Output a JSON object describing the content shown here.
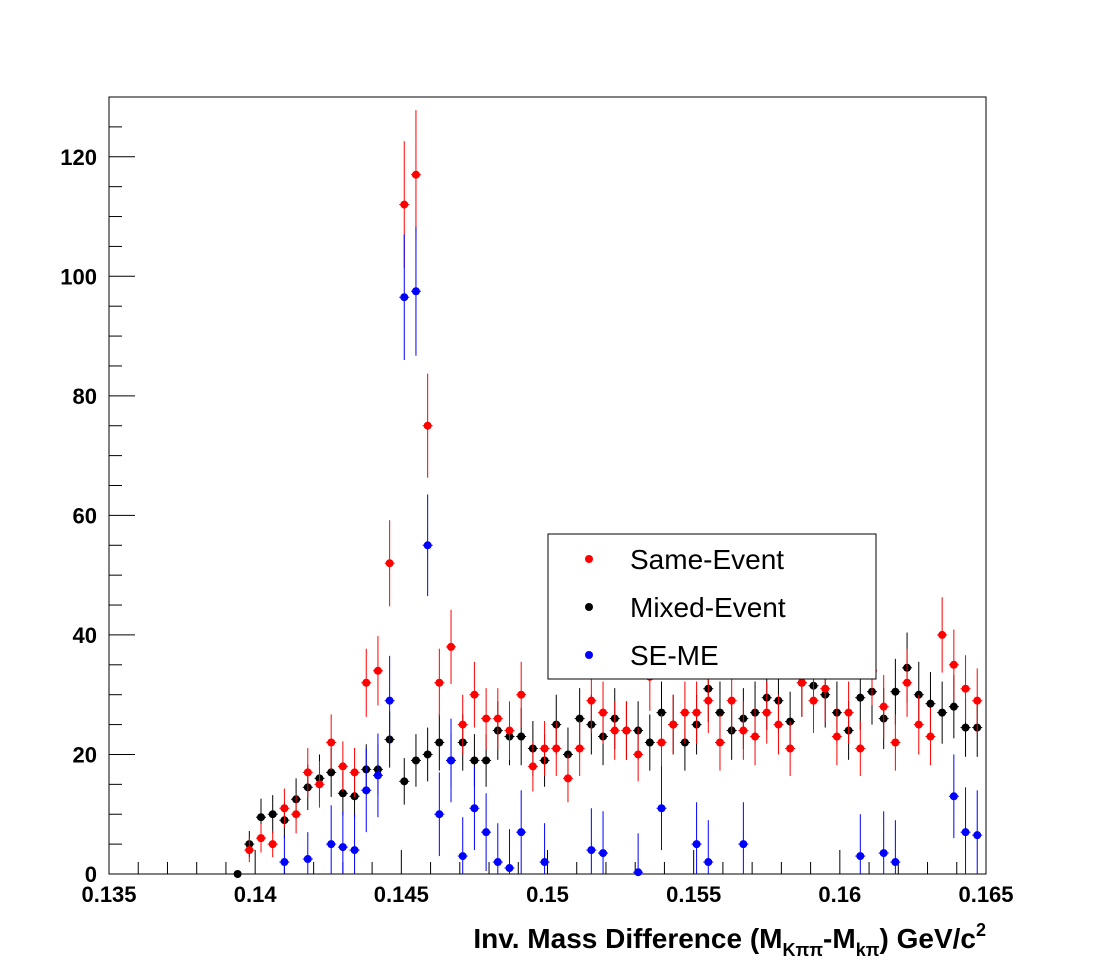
{
  "chart_data": {
    "type": "scatter",
    "title": "",
    "xlabel": {
      "main": "Inv. Mass Difference (M",
      "sub1": "Kππ",
      "mid": "-M",
      "sub2": "kπ",
      "close": ") GeV/c",
      "sup": "2"
    },
    "ylabel": "",
    "xlim": [
      0.135,
      0.165
    ],
    "ylim": [
      0,
      130
    ],
    "x_ticks": [
      0.135,
      0.14,
      0.145,
      0.15,
      0.155,
      0.16,
      0.165
    ],
    "x_tick_labels": [
      "0.135",
      "0.14",
      "0.145",
      "0.15",
      "0.155",
      "0.16",
      "0.165"
    ],
    "y_ticks": [
      0,
      20,
      40,
      60,
      80,
      100,
      120
    ],
    "y_tick_labels": [
      "0",
      "20",
      "40",
      "60",
      "80",
      "100",
      "120"
    ],
    "legend_position": "center-right",
    "series": [
      {
        "name": "Same-Event",
        "color": "#ff0000",
        "x": [
          0.1398,
          0.1402,
          0.1406,
          0.141,
          0.1414,
          0.1418,
          0.1422,
          0.1426,
          0.143,
          0.1434,
          0.1438,
          0.1442,
          0.1446,
          0.1451,
          0.1455,
          0.1459,
          0.1463,
          0.1467,
          0.1471,
          0.1475,
          0.1479,
          0.1483,
          0.1487,
          0.1491,
          0.1495,
          0.1499,
          0.1503,
          0.1507,
          0.1511,
          0.1515,
          0.1519,
          0.1523,
          0.1527,
          0.1531,
          0.1535,
          0.1539,
          0.1543,
          0.1547,
          0.1551,
          0.1555,
          0.1559,
          0.1563,
          0.1567,
          0.1571,
          0.1575,
          0.1579,
          0.1583,
          0.1587,
          0.1591,
          0.1595,
          0.1599,
          0.1603,
          0.1607,
          0.1611,
          0.1615,
          0.1619,
          0.1623,
          0.1627,
          0.1631,
          0.1635,
          0.1639,
          0.1643,
          0.1647
        ],
        "y": [
          4,
          6,
          5,
          11,
          10,
          17,
          15,
          22,
          18,
          17,
          32,
          34,
          52,
          112,
          117,
          75,
          32,
          38,
          25,
          30,
          26,
          26,
          24,
          30,
          18,
          21,
          21,
          16,
          21,
          29,
          27,
          24,
          24,
          20,
          33,
          22,
          25,
          27,
          27,
          29,
          22,
          29,
          24,
          23,
          27,
          25,
          21,
          32,
          29,
          31,
          23,
          27,
          21,
          34,
          28,
          22,
          32,
          25,
          23,
          40,
          35,
          31,
          29
        ],
        "err": [
          2,
          2.4,
          2.2,
          3.3,
          3.2,
          4.1,
          3.9,
          4.7,
          4.2,
          4.1,
          5.7,
          5.8,
          7.2,
          10.6,
          10.8,
          8.7,
          5.7,
          6.2,
          5,
          5.5,
          5.1,
          5.1,
          4.9,
          5.5,
          4.2,
          4.6,
          4.6,
          4,
          4.6,
          5.4,
          5.2,
          4.9,
          4.9,
          4.5,
          5.7,
          4.7,
          5,
          5.2,
          5.2,
          5.4,
          4.7,
          5.4,
          4.9,
          4.8,
          5.2,
          5,
          4.6,
          5.7,
          5.4,
          5.6,
          4.8,
          5.2,
          4.6,
          5.8,
          5.3,
          4.7,
          5.7,
          5,
          4.8,
          6.3,
          5.9,
          5.6,
          5.4
        ]
      },
      {
        "name": "Mixed-Event",
        "color": "#000000",
        "x": [
          0.1394,
          0.1398,
          0.1402,
          0.1406,
          0.141,
          0.1414,
          0.1418,
          0.1422,
          0.1426,
          0.143,
          0.1434,
          0.1438,
          0.1442,
          0.1446,
          0.1451,
          0.1455,
          0.1459,
          0.1463,
          0.1467,
          0.1471,
          0.1475,
          0.1479,
          0.1483,
          0.1487,
          0.1491,
          0.1495,
          0.1499,
          0.1503,
          0.1507,
          0.1511,
          0.1515,
          0.1519,
          0.1523,
          0.1527,
          0.1531,
          0.1535,
          0.1539,
          0.1543,
          0.1547,
          0.1551,
          0.1555,
          0.1559,
          0.1563,
          0.1567,
          0.1571,
          0.1575,
          0.1579,
          0.1583,
          0.1587,
          0.1591,
          0.1595,
          0.1599,
          0.1603,
          0.1607,
          0.1611,
          0.1615,
          0.1619,
          0.1623,
          0.1627,
          0.1631,
          0.1635,
          0.1639,
          0.1643,
          0.1647
        ],
        "y": [
          0,
          5,
          9.5,
          10,
          9,
          12.5,
          14.5,
          16,
          17,
          13.5,
          13,
          17.5,
          17.5,
          22.5,
          15.5,
          19,
          20,
          22,
          19,
          22,
          19,
          19,
          24,
          23,
          23,
          21,
          19,
          25,
          20,
          26,
          25,
          23,
          26,
          24,
          24,
          22,
          27,
          25,
          22,
          25,
          31,
          27,
          24,
          26,
          27,
          29.5,
          29,
          25.5,
          32,
          31.5,
          30,
          27,
          24,
          29.5,
          30.5,
          26,
          30.5,
          34.5,
          30,
          28.5,
          27,
          28,
          24.5,
          24.5
        ],
        "err": [
          0.5,
          2.2,
          3.1,
          3.2,
          3,
          3.5,
          3.8,
          4,
          4.1,
          3.7,
          3.6,
          4.2,
          4.2,
          4.7,
          3.9,
          4.4,
          4.5,
          4.7,
          4.4,
          4.7,
          4.4,
          4.4,
          4.9,
          4.8,
          4.8,
          4.6,
          4.4,
          5,
          4.5,
          5.1,
          5,
          4.8,
          5.1,
          4.9,
          4.9,
          4.7,
          5.2,
          5,
          4.7,
          5,
          5.6,
          5.2,
          4.9,
          5.1,
          5.2,
          5.4,
          5.4,
          5,
          5.7,
          5.6,
          5.5,
          5.2,
          4.9,
          5.4,
          5.5,
          5.1,
          5.5,
          5.9,
          5.5,
          5.3,
          5.2,
          5.3,
          4.9,
          4.9
        ]
      },
      {
        "name": "SE-ME",
        "color": "#0000ff",
        "x": [
          0.141,
          0.1418,
          0.1426,
          0.143,
          0.1434,
          0.1438,
          0.1442,
          0.1446,
          0.1451,
          0.1455,
          0.1459,
          0.1463,
          0.1467,
          0.1471,
          0.1475,
          0.1479,
          0.1483,
          0.1487,
          0.1491,
          0.1499,
          0.1515,
          0.1519,
          0.1531,
          0.1539,
          0.1551,
          0.1555,
          0.1567,
          0.1607,
          0.1615,
          0.1619,
          0.1639,
          0.1643,
          0.1647
        ],
        "y": [
          2,
          2.5,
          5,
          4.5,
          4,
          14,
          16.5,
          29,
          96.5,
          97.5,
          55,
          10,
          19,
          3,
          11,
          7,
          2,
          1,
          7,
          2,
          4,
          3.5,
          0.3,
          11,
          5,
          2,
          5,
          3,
          3.5,
          2,
          13,
          7,
          6.5
        ],
        "err": [
          4.5,
          4.5,
          6.5,
          6,
          6,
          7,
          7,
          7.5,
          10.5,
          10.8,
          8.5,
          7,
          7,
          6.5,
          7,
          6.5,
          6.5,
          6.5,
          7,
          6.5,
          7,
          7,
          6.5,
          7,
          7,
          7,
          7,
          7,
          7,
          7,
          7,
          7.5,
          7.5
        ]
      }
    ]
  }
}
